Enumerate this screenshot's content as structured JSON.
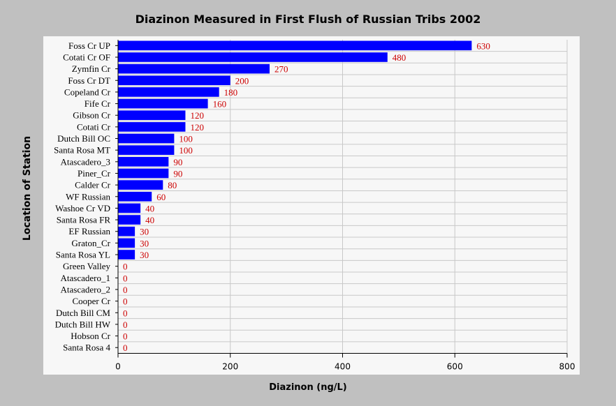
{
  "chart_data": {
    "type": "bar",
    "orientation": "horizontal",
    "title": "Diazinon Measured in First Flush of Russian Tribs 2002",
    "xlabel": "Diazinon (ng/L)",
    "ylabel": "Location of Station",
    "xlim": [
      0,
      800
    ],
    "x_ticks": [
      "0",
      "200",
      "400",
      "600",
      "800"
    ],
    "grid": true,
    "categories": [
      "Foss Cr UP",
      "Cotati Cr OF",
      "Zymfin Cr",
      "Foss Cr DT",
      "Copeland Cr",
      "Fife Cr",
      "Gibson Cr",
      "Cotati Cr",
      "Dutch Bill OC",
      "Santa Rosa MT",
      "Atascadero_3",
      "Piner_Cr",
      "Calder Cr",
      "WF Russian",
      "Washoe Cr VD",
      "Santa Rosa FR",
      "EF Russian",
      "Graton_Cr",
      "Santa Rosa YL",
      "Green Valley",
      "Atascadero_1",
      "Atascadero_2",
      "Cooper Cr",
      "Dutch Bill CM",
      "Dutch Bill HW",
      "Hobson Cr",
      "Santa Rosa 4"
    ],
    "values": [
      630,
      480,
      270,
      200,
      180,
      160,
      120,
      120,
      100,
      100,
      90,
      90,
      80,
      60,
      40,
      40,
      30,
      30,
      30,
      0,
      0,
      0,
      0,
      0,
      0,
      0,
      0
    ],
    "value_labels": [
      "630",
      "480",
      "270",
      "200",
      "180",
      "160",
      "120",
      "120",
      "100",
      "100",
      "90",
      "90",
      "80",
      "60",
      "40",
      "40",
      "30",
      "30",
      "30",
      "0",
      "0",
      "0",
      "0",
      "0",
      "0",
      "0",
      "0"
    ]
  },
  "colors": {
    "background": "#c0c0c0",
    "plot_area": "#f7f7f7",
    "bar": "#0000ff",
    "value_label": "#cc0000",
    "grid": "#c8c8c8"
  }
}
